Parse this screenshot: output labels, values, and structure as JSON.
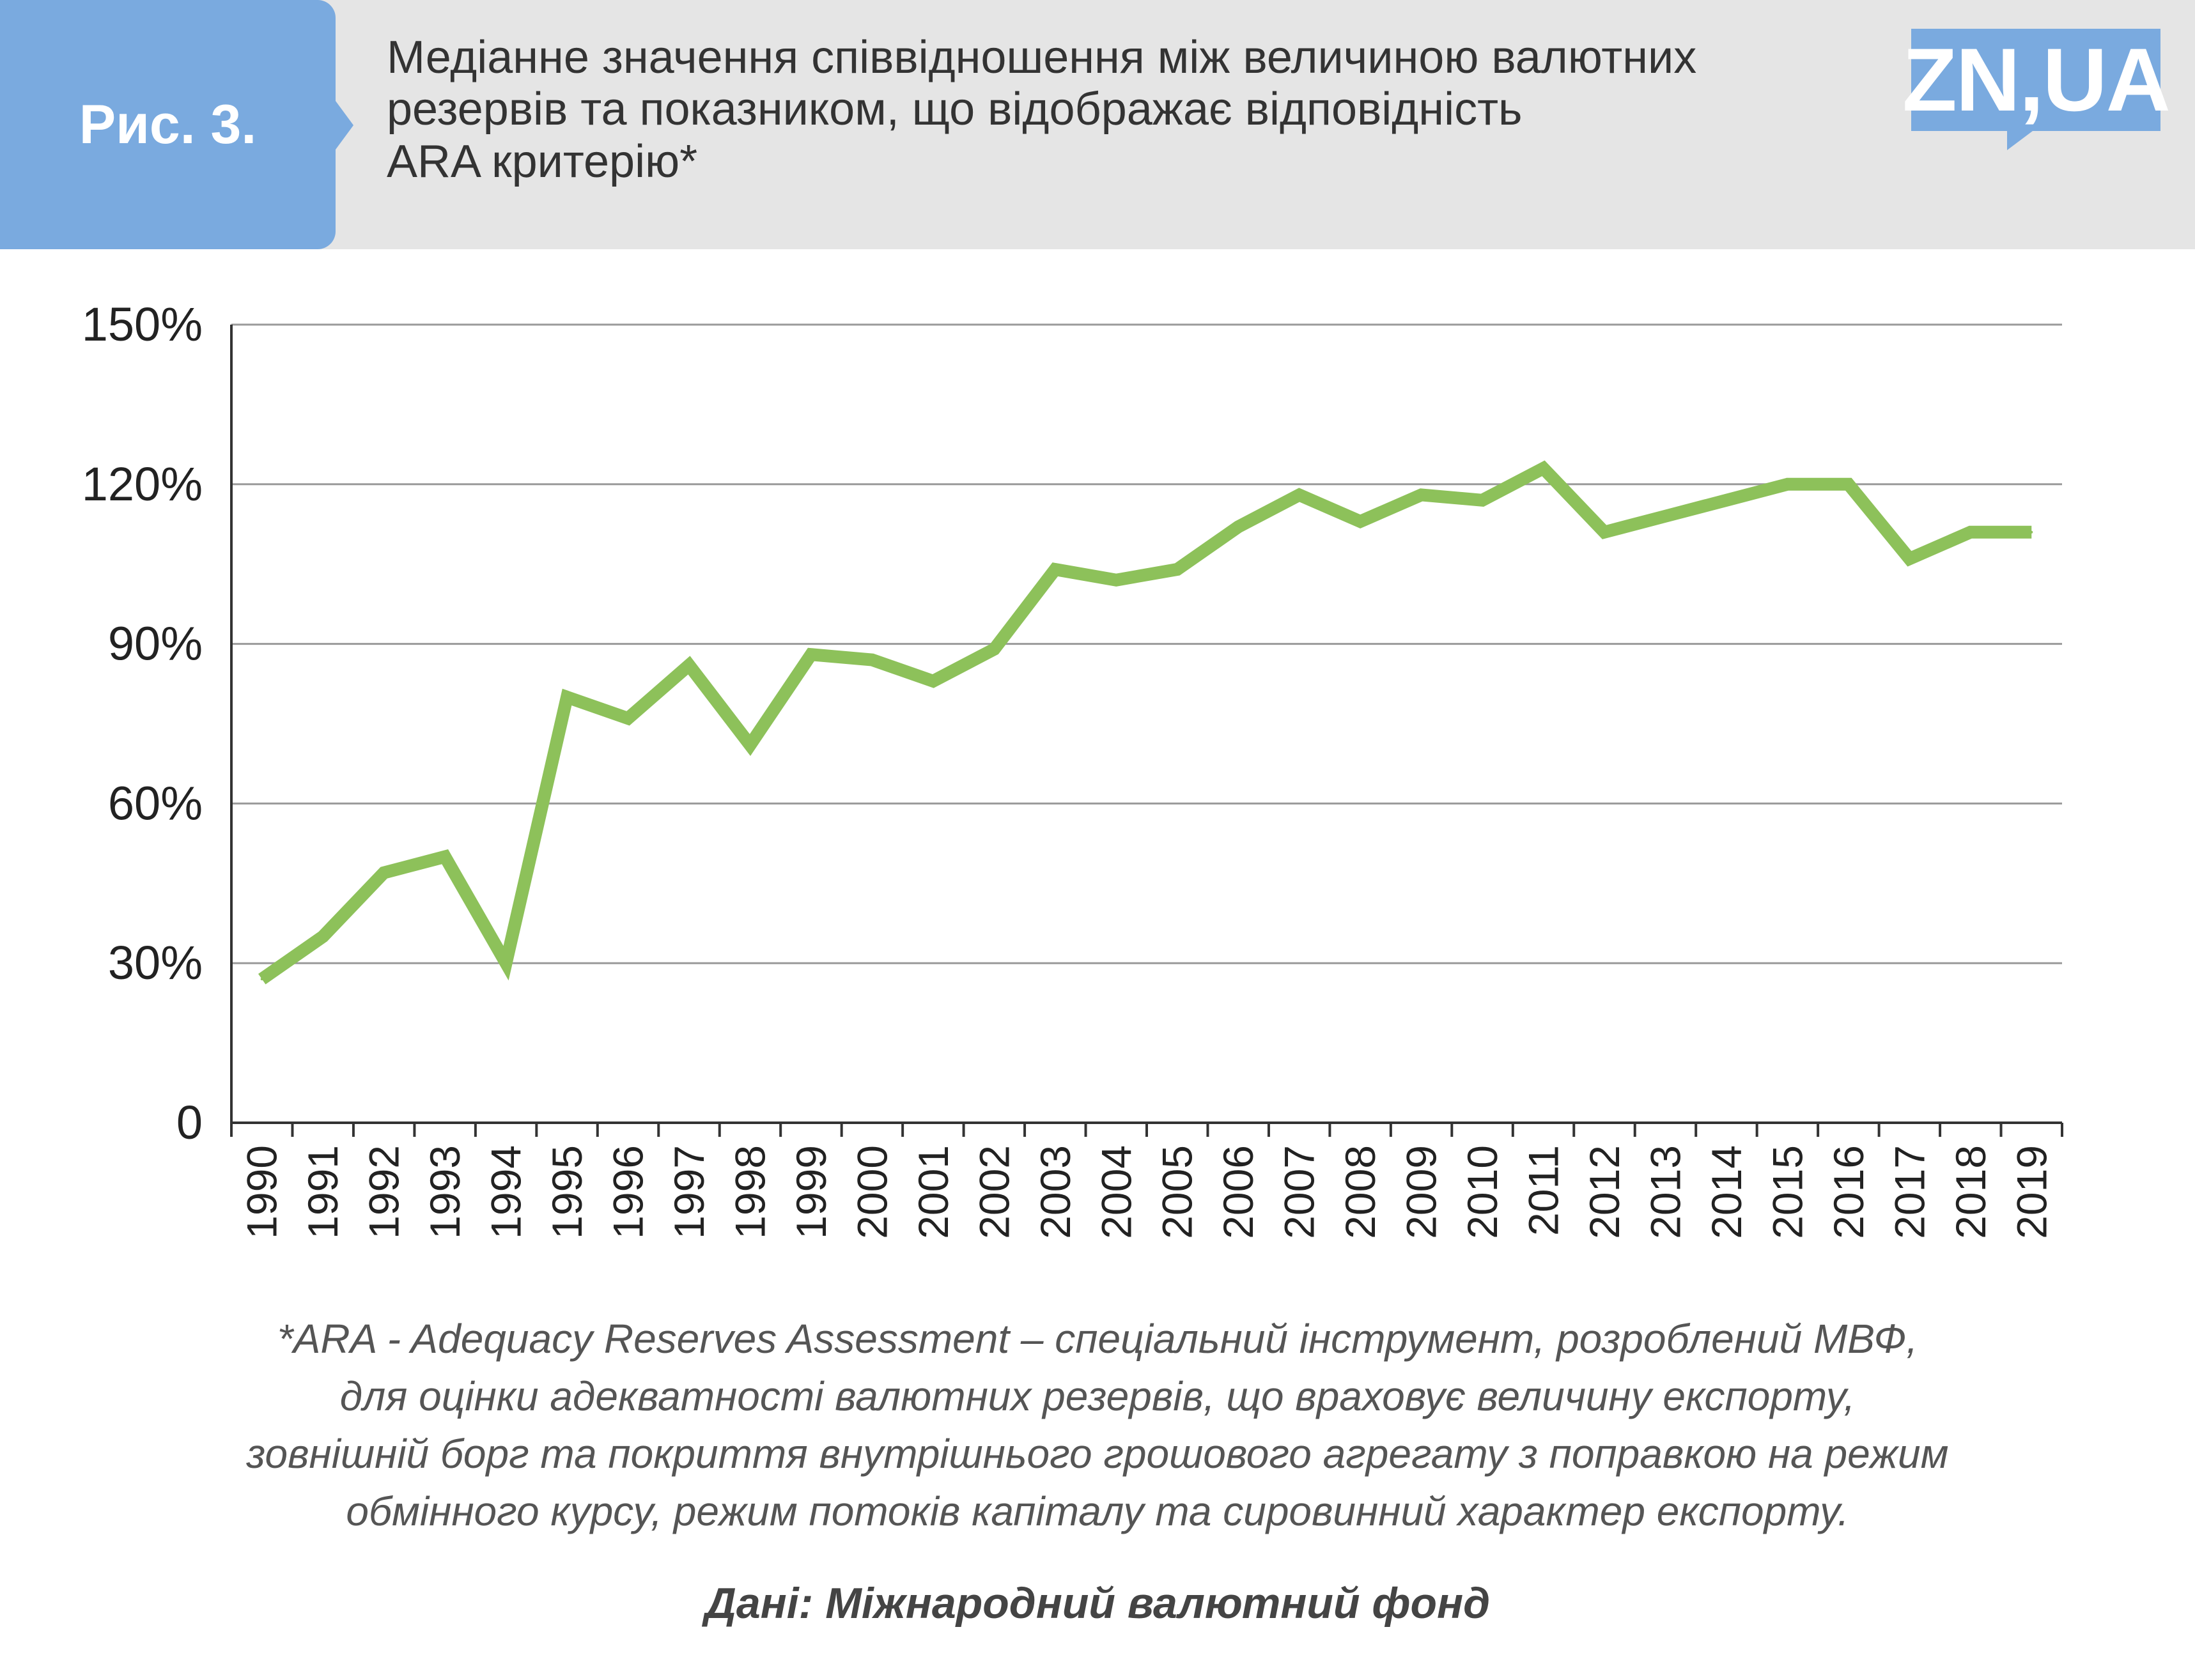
{
  "header": {
    "figure_label": "Рис. 3.",
    "title_lines": [
      "Медіанне значення співвідношення між величиною валютних",
      "резервів та показником, що відображає відповідність",
      "ARA критерію*"
    ],
    "logo_text": "ZN,UA",
    "band_color": "#e5e5e5",
    "accent_color": "#7aaadf"
  },
  "chart_data": {
    "type": "line",
    "title": "Медіанне значення співвідношення між величиною валютних резервів та показником, що відображає відповідність ARA критерію*",
    "categories": [
      "1990",
      "1991",
      "1992",
      "1993",
      "1994",
      "1995",
      "1996",
      "1997",
      "1998",
      "1999",
      "2000",
      "2001",
      "2002",
      "2003",
      "2004",
      "2005",
      "2006",
      "2007",
      "2008",
      "2009",
      "2010",
      "2011",
      "2012",
      "2013",
      "2014",
      "2015",
      "2016",
      "2017",
      "2018",
      "2019"
    ],
    "series": [
      {
        "values": [
          27,
          35,
          47,
          50,
          30,
          80,
          76,
          86,
          71,
          88,
          87,
          83,
          89,
          104,
          102,
          104,
          112,
          118,
          113,
          118,
          117,
          123,
          111,
          114,
          117,
          120,
          120,
          106,
          111,
          111
        ],
        "color": "#8dc15a"
      }
    ],
    "y_ticks": [
      0,
      30,
      60,
      90,
      120,
      150
    ],
    "y_tick_labels": [
      "0",
      "30%",
      "60%",
      "90%",
      "120%",
      "150%"
    ],
    "ylim": [
      0,
      150
    ],
    "xlabel": "",
    "ylabel": "",
    "grid": "horizontal",
    "legend": "none"
  },
  "footnote": {
    "lines": [
      "*ARA - Adequacy Reserves Assessment – спеціальний інструмент, розроблений МВФ,",
      "для оцінки адекватності валютних резервів, що враховує величину експорту,",
      "зовнішній борг та покриття внутрішнього грошового агрегату з поправкою на режим",
      "обмінного курсу, режим потоків капіталу та сировинний характер експорту."
    ]
  },
  "source": "Дані: Міжнародний валютний фонд"
}
